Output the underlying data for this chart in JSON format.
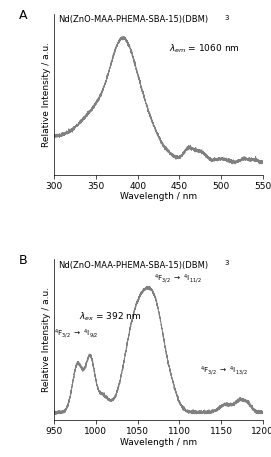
{
  "panel_A": {
    "xlabel": "Wavelength / nm",
    "ylabel": "Relative Intensity / a.u.",
    "xlim": [
      300,
      550
    ],
    "xticks": [
      300,
      350,
      400,
      450,
      500,
      550
    ],
    "label": "A",
    "title_text": "Nd(ZnO-MAA-PHEMA-SBA-15)(DBM)",
    "title_sub": "3",
    "annot_text": "$\\lambda_{em}$ = 1060 nm"
  },
  "panel_B": {
    "xlabel": "Wavelength / nm",
    "ylabel": "Relative Intensity / a.u.",
    "xlim": [
      950,
      1200
    ],
    "xticks": [
      950,
      1000,
      1050,
      1100,
      1150,
      1200
    ],
    "label": "B",
    "title_text": "Nd(ZnO-MAA-PHEMA-SBA-15)(DBM)",
    "title_sub": "3",
    "annot_ex": "$\\lambda_{ex}$ = 392 nm",
    "label_9_2": "$^4$F$_{3/2}$ $\\rightarrow$ $^4$I$_{9/2}$",
    "label_11_2": "$^4$F$_{3/2}$ $\\rightarrow$ $^4$I$_{11/2}$",
    "label_13_2": "$^4$F$_{3/2}$ $\\rightarrow$ $^4$I$_{13/2}$"
  },
  "line_color": "#808080",
  "line_width": 0.7,
  "bg_color": "#ffffff",
  "font_size": 6.5,
  "label_font_size": 9,
  "title_font_size": 6.0
}
